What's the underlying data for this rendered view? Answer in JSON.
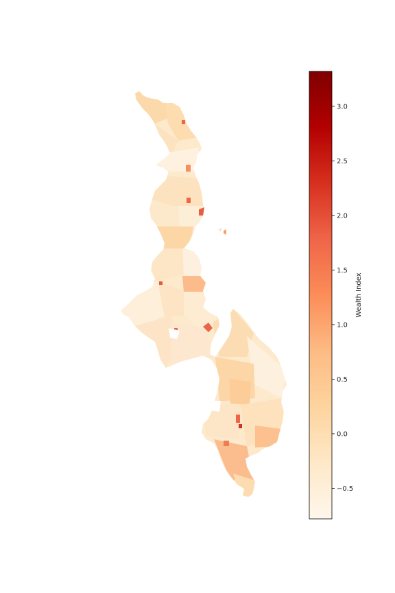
{
  "map": {
    "colormap": "OrRd",
    "regions_note_colors": {
      "low": "#fff7ec",
      "mid": "#fdd49e",
      "high": "#ef6548",
      "max": "#7f0000"
    }
  },
  "colorbar": {
    "label": "Wealth Index",
    "vmin": -0.78,
    "vmax": 3.32,
    "ticks": [
      {
        "value": -0.5,
        "label": "−0.5"
      },
      {
        "value": 0.0,
        "label": "0.0"
      },
      {
        "value": 0.5,
        "label": "0.5"
      },
      {
        "value": 1.0,
        "label": "1.0"
      },
      {
        "value": 1.5,
        "label": "1.5"
      },
      {
        "value": 2.0,
        "label": "2.0"
      },
      {
        "value": 2.5,
        "label": "2.5"
      },
      {
        "value": 3.0,
        "label": "3.0"
      }
    ],
    "gradient_stops": [
      "#fff7ec",
      "#fee8c8",
      "#fdd49e",
      "#fdbb84",
      "#fc8d59",
      "#ef6548",
      "#d7301f",
      "#b30000",
      "#7f0000"
    ]
  }
}
